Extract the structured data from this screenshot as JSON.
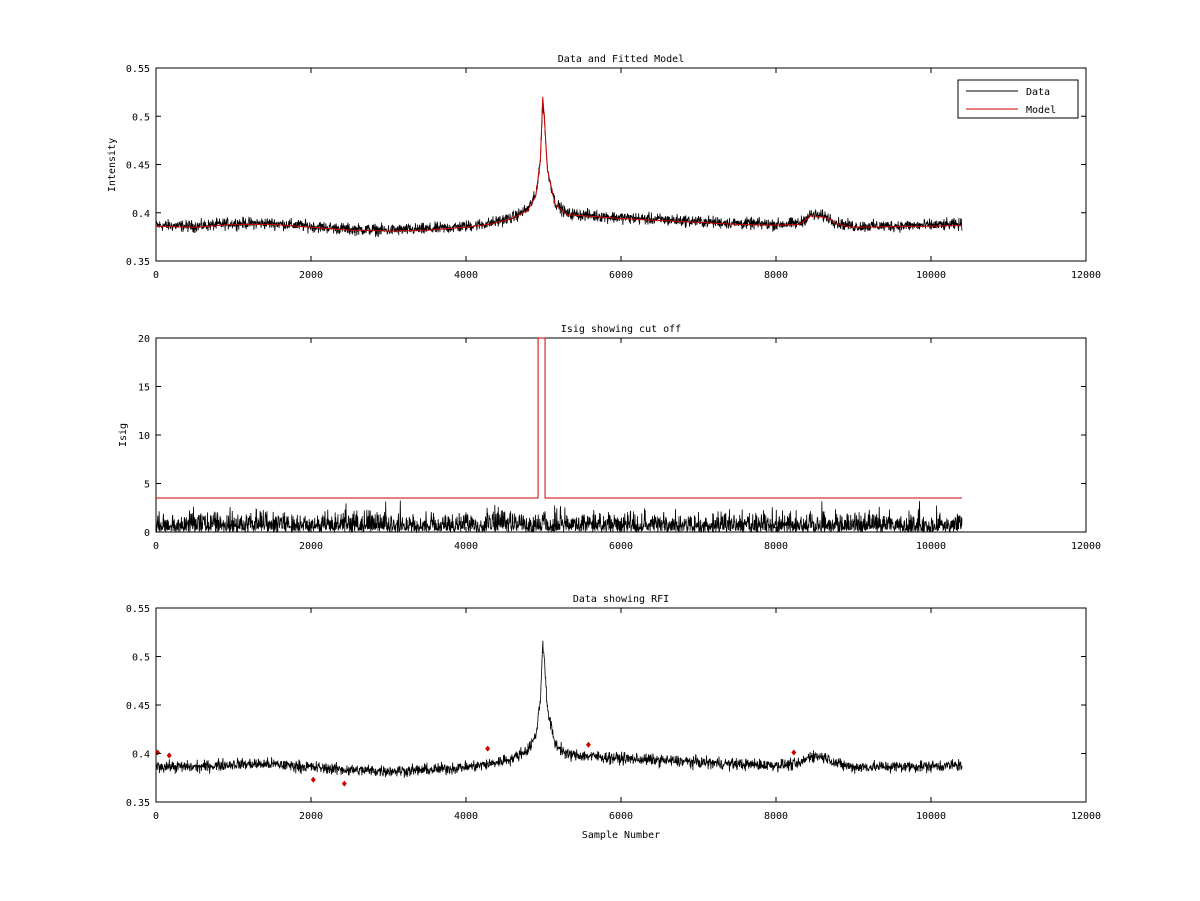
{
  "figure": {
    "background": "#ffffff",
    "data_color": "#000000",
    "model_color": "#cc0000"
  },
  "chart_data": [
    {
      "type": "line",
      "title": "Data and Fitted Model",
      "xlabel": "",
      "ylabel": "Intensity",
      "xlim": [
        0,
        12000
      ],
      "ylim": [
        0.35,
        0.55
      ],
      "xticks": [
        0,
        2000,
        4000,
        6000,
        8000,
        10000,
        12000
      ],
      "xtick_labels": [
        "0",
        "2000",
        "4000",
        "6000",
        "8000",
        "10000",
        "12000"
      ],
      "yticks": [
        0.35,
        0.4,
        0.45,
        0.5,
        0.55
      ],
      "ytick_labels": [
        "0.35",
        "0.4",
        "0.45",
        "0.5",
        "0.55"
      ],
      "legend": {
        "position": "top-right",
        "entries": [
          "Data",
          "Model"
        ]
      },
      "series": [
        {
          "name": "Data",
          "color": "#000000",
          "kind": "noisy",
          "x_range": [
            0,
            10400
          ],
          "noise_amplitude": 0.006,
          "baseline": [
            [
              0,
              0.387
            ],
            [
              500,
              0.386
            ],
            [
              1000,
              0.389
            ],
            [
              1500,
              0.389
            ],
            [
              2000,
              0.386
            ],
            [
              2500,
              0.383
            ],
            [
              3000,
              0.382
            ],
            [
              3500,
              0.383
            ],
            [
              4000,
              0.386
            ],
            [
              4300,
              0.389
            ],
            [
              4600,
              0.395
            ],
            [
              4800,
              0.404
            ],
            [
              4900,
              0.418
            ],
            [
              4960,
              0.455
            ],
            [
              4990,
              0.515
            ],
            [
              5010,
              0.5
            ],
            [
              5050,
              0.445
            ],
            [
              5150,
              0.41
            ],
            [
              5300,
              0.399
            ],
            [
              6000,
              0.395
            ],
            [
              6500,
              0.393
            ],
            [
              7000,
              0.391
            ],
            [
              7500,
              0.389
            ],
            [
              8000,
              0.388
            ],
            [
              8300,
              0.389
            ],
            [
              8450,
              0.398
            ],
            [
              8650,
              0.396
            ],
            [
              8800,
              0.389
            ],
            [
              9000,
              0.386
            ],
            [
              10000,
              0.387
            ],
            [
              10400,
              0.388
            ]
          ]
        },
        {
          "name": "Model",
          "color": "#cc0000",
          "kind": "smooth",
          "points": [
            [
              0,
              0.386
            ],
            [
              500,
              0.385
            ],
            [
              1000,
              0.388
            ],
            [
              1500,
              0.388
            ],
            [
              2000,
              0.385
            ],
            [
              2500,
              0.382
            ],
            [
              3000,
              0.381
            ],
            [
              3500,
              0.382
            ],
            [
              4000,
              0.385
            ],
            [
              4300,
              0.388
            ],
            [
              4600,
              0.394
            ],
            [
              4800,
              0.403
            ],
            [
              4900,
              0.417
            ],
            [
              4960,
              0.455
            ],
            [
              4990,
              0.52
            ],
            [
              5010,
              0.5
            ],
            [
              5050,
              0.445
            ],
            [
              5150,
              0.409
            ],
            [
              5300,
              0.398
            ],
            [
              6000,
              0.394
            ],
            [
              6500,
              0.392
            ],
            [
              7000,
              0.39
            ],
            [
              7500,
              0.388
            ],
            [
              8000,
              0.387
            ],
            [
              8300,
              0.388
            ],
            [
              8450,
              0.397
            ],
            [
              8650,
              0.395
            ],
            [
              8800,
              0.388
            ],
            [
              9000,
              0.385
            ],
            [
              10000,
              0.386
            ],
            [
              10400,
              0.387
            ]
          ]
        }
      ]
    },
    {
      "type": "line",
      "title": "Isig showing cut off",
      "xlabel": "",
      "ylabel": "Isig",
      "xlim": [
        0,
        12000
      ],
      "ylim": [
        0,
        20
      ],
      "xticks": [
        0,
        2000,
        4000,
        6000,
        8000,
        10000,
        12000
      ],
      "xtick_labels": [
        "0",
        "2000",
        "4000",
        "6000",
        "8000",
        "10000",
        "12000"
      ],
      "yticks": [
        0,
        5,
        10,
        15,
        20
      ],
      "ytick_labels": [
        "0",
        "5",
        "10",
        "15",
        "20"
      ],
      "series": [
        {
          "color": "#000000",
          "kind": "noisy-abs",
          "x_range": [
            0,
            10400
          ],
          "noise_amplitude": 1.2,
          "baseline": [
            [
              0,
              0.5
            ],
            [
              10400,
              0.5
            ]
          ]
        },
        {
          "color": "#cc0000",
          "kind": "step",
          "points": [
            [
              0,
              3.5
            ],
            [
              4930,
              3.5
            ],
            [
              4930,
              20
            ],
            [
              5020,
              20
            ],
            [
              5020,
              3.5
            ],
            [
              10400,
              3.5
            ]
          ]
        }
      ]
    },
    {
      "type": "line",
      "title": "Data showing RFI",
      "xlabel": "Sample Number",
      "ylabel": "",
      "xlim": [
        0,
        12000
      ],
      "ylim": [
        0.35,
        0.55
      ],
      "xticks": [
        0,
        2000,
        4000,
        6000,
        8000,
        10000,
        12000
      ],
      "xtick_labels": [
        "0",
        "2000",
        "4000",
        "6000",
        "8000",
        "10000",
        "12000"
      ],
      "yticks": [
        0.35,
        0.4,
        0.45,
        0.5,
        0.55
      ],
      "ytick_labels": [
        "0.35",
        "0.4",
        "0.45",
        "0.5",
        "0.55"
      ],
      "series": [
        {
          "color": "#000000",
          "kind": "noisy",
          "x_range": [
            0,
            10400
          ],
          "noise_amplitude": 0.006,
          "baseline": [
            [
              0,
              0.387
            ],
            [
              500,
              0.386
            ],
            [
              1000,
              0.389
            ],
            [
              1500,
              0.389
            ],
            [
              2000,
              0.386
            ],
            [
              2500,
              0.383
            ],
            [
              3000,
              0.382
            ],
            [
              3500,
              0.383
            ],
            [
              4000,
              0.386
            ],
            [
              4300,
              0.389
            ],
            [
              4600,
              0.395
            ],
            [
              4800,
              0.404
            ],
            [
              4900,
              0.418
            ],
            [
              4960,
              0.455
            ],
            [
              4990,
              0.515
            ],
            [
              5010,
              0.5
            ],
            [
              5050,
              0.445
            ],
            [
              5150,
              0.41
            ],
            [
              5300,
              0.399
            ],
            [
              6000,
              0.395
            ],
            [
              6500,
              0.393
            ],
            [
              7000,
              0.391
            ],
            [
              7500,
              0.389
            ],
            [
              8000,
              0.388
            ],
            [
              8300,
              0.389
            ],
            [
              8450,
              0.398
            ],
            [
              8650,
              0.396
            ],
            [
              8800,
              0.389
            ],
            [
              9000,
              0.386
            ],
            [
              10000,
              0.387
            ],
            [
              10400,
              0.388
            ]
          ]
        },
        {
          "color": "#cc0000",
          "kind": "markers",
          "points": [
            [
              20,
              0.401
            ],
            [
              170,
              0.398
            ],
            [
              2030,
              0.373
            ],
            [
              2430,
              0.369
            ],
            [
              4280,
              0.405
            ],
            [
              5580,
              0.409
            ],
            [
              8230,
              0.401
            ]
          ]
        }
      ]
    }
  ]
}
